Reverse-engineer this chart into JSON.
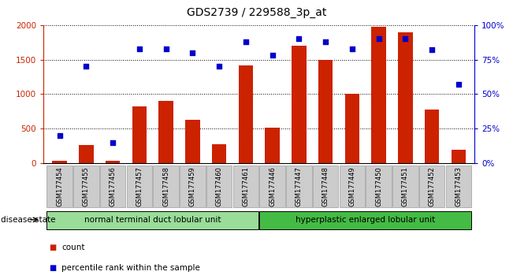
{
  "title": "GDS2739 / 229588_3p_at",
  "categories": [
    "GSM177454",
    "GSM177455",
    "GSM177456",
    "GSM177457",
    "GSM177458",
    "GSM177459",
    "GSM177460",
    "GSM177461",
    "GSM177446",
    "GSM177447",
    "GSM177448",
    "GSM177449",
    "GSM177450",
    "GSM177451",
    "GSM177452",
    "GSM177453"
  ],
  "bar_values": [
    30,
    260,
    40,
    820,
    900,
    630,
    280,
    1420,
    510,
    1700,
    1500,
    1010,
    1980,
    1900,
    780,
    190
  ],
  "dot_values_pct": [
    20,
    70,
    15,
    83,
    83,
    80,
    70,
    88,
    78,
    90,
    88,
    83,
    90,
    90,
    82,
    57
  ],
  "bar_color": "#cc2200",
  "dot_color": "#0000cc",
  "ylim_left": [
    0,
    2000
  ],
  "ylim_right": [
    0,
    100
  ],
  "yticks_left": [
    0,
    500,
    1000,
    1500,
    2000
  ],
  "yticks_right": [
    0,
    25,
    50,
    75,
    100
  ],
  "ytick_labels_right": [
    "0%",
    "25%",
    "50%",
    "75%",
    "100%"
  ],
  "group1_label": "normal terminal duct lobular unit",
  "group2_label": "hyperplastic enlarged lobular unit",
  "group1_indices": [
    0,
    7
  ],
  "group2_indices": [
    8,
    15
  ],
  "group1_color": "#99dd99",
  "group2_color": "#44bb44",
  "disease_state_label": "disease state",
  "legend_count_label": "count",
  "legend_pct_label": "percentile rank within the sample",
  "bar_color_legend": "#cc2200",
  "dot_color_legend": "#0000cc",
  "bg_plot": "#ffffff",
  "bg_xtick": "#cccccc",
  "title_fontsize": 10,
  "tick_fontsize": 7.5,
  "bar_width": 0.55
}
